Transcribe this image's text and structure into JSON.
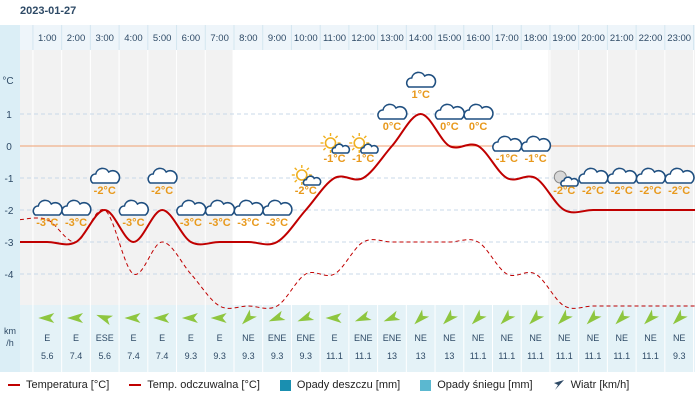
{
  "date": "2023-01-27",
  "colors": {
    "temperature": "#c00000",
    "feels_like": "#c00000",
    "rain": "#1a8fb0",
    "snow": "#5bb8d0",
    "wind_arrow": "#8ec63f",
    "temp_label": "#e8991c",
    "zero_line": "#f0a070"
  },
  "y_unit": "°C",
  "wind_unit": "km\n/h",
  "chart_data": {
    "type": "line",
    "title": "",
    "x": [
      "1:00",
      "2:00",
      "3:00",
      "4:00",
      "5:00",
      "6:00",
      "7:00",
      "8:00",
      "9:00",
      "10:00",
      "11:00",
      "12:00",
      "13:00",
      "14:00",
      "15:00",
      "16:00",
      "17:00",
      "18:00",
      "19:00",
      "20:00",
      "21:00",
      "22:00",
      "23:00"
    ],
    "y_ticks": [
      "-4",
      "-3",
      "-2",
      "-1",
      "0",
      "1"
    ],
    "ylim": [
      -5,
      2
    ],
    "series": [
      {
        "name": "Temperatura [°C]",
        "style": "solid",
        "values": [
          -3,
          -3,
          -2,
          -3,
          -2,
          -3,
          -3,
          -3,
          -3,
          -2,
          -1,
          -1,
          0,
          1,
          0,
          0,
          -1,
          -1,
          -2,
          -2,
          -2,
          -2,
          -2
        ]
      },
      {
        "name": "Temp. odczuwalna [°C]",
        "style": "dashed",
        "values": [
          -2.3,
          -3,
          -2,
          -4,
          -3,
          -4,
          -5,
          -5,
          -5,
          -4,
          -4,
          -3,
          -3,
          -3,
          -3,
          -3,
          -4,
          -4,
          -5,
          -5,
          -5,
          -5,
          -5
        ]
      }
    ],
    "temp_labels": [
      "-3°C",
      "-3°C",
      "-2°C",
      "-3°C",
      "-2°C",
      "-3°C",
      "-3°C",
      "-3°C",
      "-3°C",
      "-2°C",
      "-1°C",
      "-1°C",
      "0°C",
      "1°C",
      "0°C",
      "0°C",
      "-1°C",
      "-1°C",
      "-2°C",
      "-2°C",
      "-2°C",
      "-2°C",
      "-2°C"
    ],
    "icons": [
      "cloud",
      "cloud",
      "cloud",
      "cloud",
      "cloud",
      "cloud",
      "cloud",
      "cloud",
      "cloud",
      "sun-cloud",
      "sun-cloud",
      "sun-cloud",
      "cloud",
      "cloud",
      "cloud",
      "cloud",
      "cloud",
      "cloud",
      "moon-cloud",
      "cloud",
      "cloud",
      "cloud",
      "cloud"
    ],
    "wind_dir": [
      "E",
      "E",
      "ESE",
      "E",
      "E",
      "E",
      "E",
      "NE",
      "ENE",
      "ENE",
      "E",
      "ENE",
      "ENE",
      "NE",
      "NE",
      "NE",
      "NE",
      "NE",
      "NE",
      "NE",
      "NE",
      "NE",
      "NE"
    ],
    "wind_speed": [
      "5.6",
      "7.4",
      "5.6",
      "7.4",
      "7.4",
      "9.3",
      "9.3",
      "9.3",
      "9.3",
      "9.3",
      "11.1",
      "11.1",
      "13",
      "13",
      "13",
      "11.1",
      "11.1",
      "11.1",
      "11.1",
      "11.1",
      "11.1",
      "11.1",
      "9.3"
    ],
    "wind_angle": [
      270,
      270,
      290,
      270,
      270,
      270,
      270,
      225,
      248,
      248,
      270,
      248,
      248,
      225,
      225,
      225,
      225,
      225,
      225,
      225,
      225,
      225,
      225
    ]
  },
  "legend": {
    "temperature": "Temperatura [°C]",
    "feels_like": "Temp. odczuwalna [°C]",
    "rain": "Opady deszczu [mm]",
    "snow": "Opady śniegu [mm]",
    "wind": "Wiatr [km/h]"
  }
}
